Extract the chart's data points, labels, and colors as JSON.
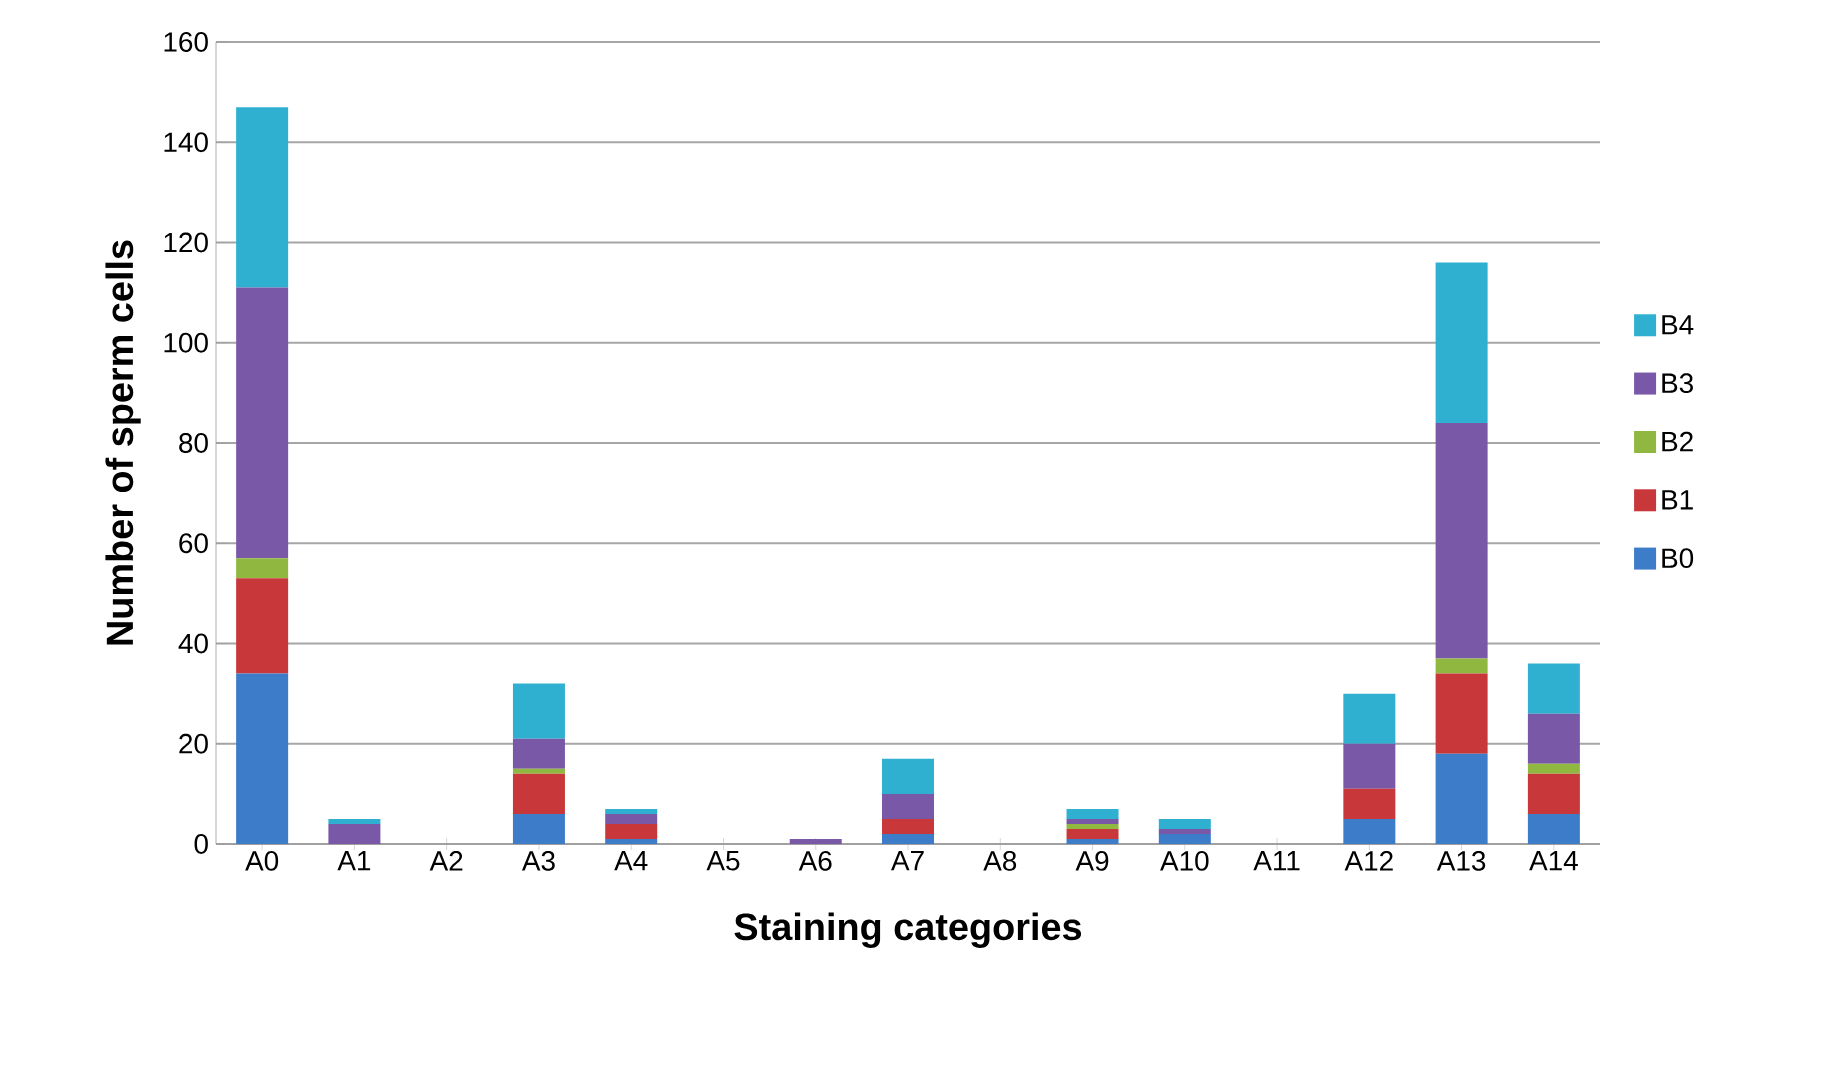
{
  "chart_data": {
    "type": "bar",
    "stacked": true,
    "xlabel": "Staining categories",
    "ylabel": "Number of sperm cells",
    "categories": [
      "A0",
      "A1",
      "A2",
      "A3",
      "A4",
      "A5",
      "A6",
      "A7",
      "A8",
      "A9",
      "A10",
      "A11",
      "A12",
      "A13",
      "A14"
    ],
    "series": [
      {
        "name": "B0",
        "color": "#3c7cc8",
        "values": [
          34,
          0,
          0,
          6,
          1,
          0,
          0,
          2,
          0,
          1,
          2,
          0,
          5,
          18,
          6
        ]
      },
      {
        "name": "B1",
        "color": "#c8383a",
        "values": [
          19,
          0,
          0,
          8,
          3,
          0,
          0,
          3,
          0,
          2,
          0,
          0,
          6,
          16,
          8
        ]
      },
      {
        "name": "B2",
        "color": "#90b840",
        "values": [
          4,
          0,
          0,
          1,
          0,
          0,
          0,
          0,
          0,
          1,
          0,
          0,
          0,
          3,
          2
        ]
      },
      {
        "name": "B3",
        "color": "#7a58a8",
        "values": [
          54,
          4,
          0,
          6,
          2,
          0,
          1,
          5,
          0,
          1,
          1,
          0,
          9,
          47,
          10
        ]
      },
      {
        "name": "B4",
        "color": "#30b0d0",
        "values": [
          36,
          1,
          0,
          11,
          1,
          0,
          0,
          7,
          0,
          2,
          2,
          0,
          10,
          32,
          10
        ]
      }
    ],
    "ylim": [
      0,
      160
    ],
    "yticks": [
      0,
      20,
      40,
      60,
      80,
      100,
      120,
      140,
      160
    ],
    "grid": "y",
    "legend": "right"
  }
}
